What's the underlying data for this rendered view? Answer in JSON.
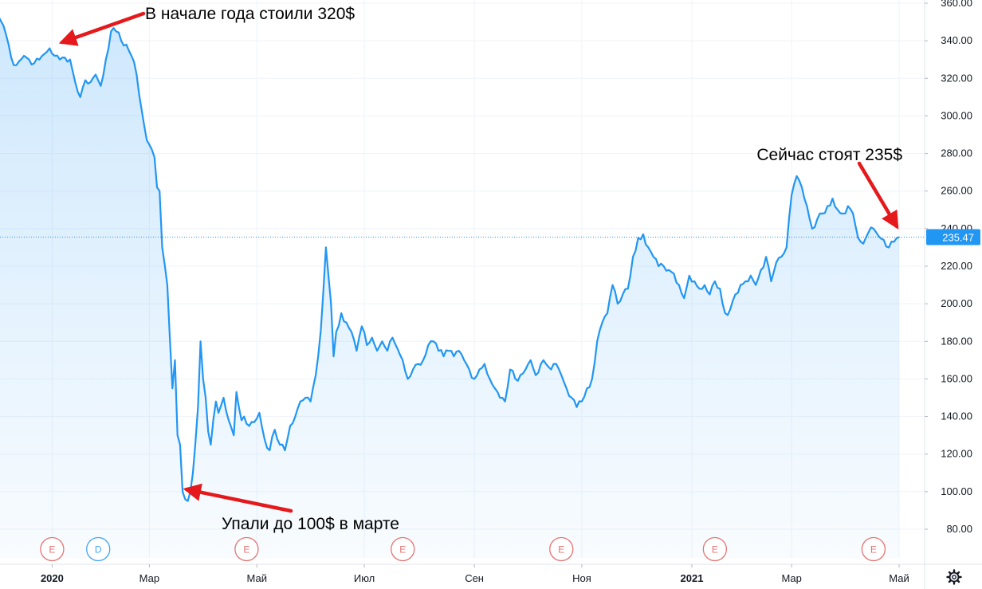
{
  "chart_data": {
    "type": "area",
    "ylim": [
      75,
      362
    ],
    "yticks": [
      "80.00",
      "100.00",
      "120.00",
      "140.00",
      "160.00",
      "180.00",
      "200.00",
      "220.00",
      "240.00",
      "260.00",
      "280.00",
      "300.00",
      "320.00",
      "340.00",
      "360.00"
    ],
    "xticks": [
      {
        "label": "2020",
        "idx": 21,
        "bold": true
      },
      {
        "label": "Мар",
        "idx": 59,
        "bold": false
      },
      {
        "label": "Май",
        "idx": 101,
        "bold": false
      },
      {
        "label": "Июл",
        "idx": 143,
        "bold": false
      },
      {
        "label": "Сен",
        "idx": 186,
        "bold": false
      },
      {
        "label": "Ноя",
        "idx": 228,
        "bold": false
      },
      {
        "label": "2021",
        "idx": 271,
        "bold": true
      },
      {
        "label": "Мар",
        "idx": 310,
        "bold": false
      },
      {
        "label": "Май",
        "idx": 352,
        "bold": false
      }
    ],
    "anchors": [
      [
        0,
        353
      ],
      [
        2,
        348
      ],
      [
        4,
        338
      ],
      [
        6,
        327
      ],
      [
        8,
        329
      ],
      [
        10,
        332
      ],
      [
        12,
        330
      ],
      [
        14,
        328
      ],
      [
        16,
        330
      ],
      [
        18,
        333
      ],
      [
        20,
        336
      ],
      [
        22,
        332
      ],
      [
        24,
        330
      ],
      [
        26,
        331
      ],
      [
        28,
        330
      ],
      [
        30,
        318
      ],
      [
        32,
        310
      ],
      [
        34,
        319
      ],
      [
        36,
        318
      ],
      [
        38,
        322
      ],
      [
        40,
        316
      ],
      [
        42,
        330
      ],
      [
        44,
        345
      ],
      [
        46,
        345
      ],
      [
        48,
        340
      ],
      [
        50,
        338
      ],
      [
        52,
        332
      ],
      [
        54,
        322
      ],
      [
        56,
        303
      ],
      [
        58,
        287
      ],
      [
        60,
        282
      ],
      [
        61,
        278
      ],
      [
        62,
        262
      ],
      [
        63,
        260
      ],
      [
        64,
        230
      ],
      [
        66,
        210
      ],
      [
        68,
        155
      ],
      [
        69,
        170
      ],
      [
        70,
        130
      ],
      [
        71,
        125
      ],
      [
        72,
        100
      ],
      [
        73,
        96
      ],
      [
        74,
        95
      ],
      [
        75,
        100
      ],
      [
        76,
        110
      ],
      [
        78,
        145
      ],
      [
        79,
        180
      ],
      [
        80,
        160
      ],
      [
        81,
        150
      ],
      [
        82,
        132
      ],
      [
        83,
        125
      ],
      [
        85,
        148
      ],
      [
        86,
        142
      ],
      [
        88,
        150
      ],
      [
        90,
        138
      ],
      [
        92,
        130
      ],
      [
        93,
        153
      ],
      [
        95,
        138
      ],
      [
        96,
        140
      ],
      [
        98,
        135
      ],
      [
        100,
        137
      ],
      [
        102,
        142
      ],
      [
        104,
        128
      ],
      [
        106,
        122
      ],
      [
        108,
        133
      ],
      [
        110,
        125
      ],
      [
        112,
        122
      ],
      [
        114,
        135
      ],
      [
        116,
        140
      ],
      [
        118,
        148
      ],
      [
        120,
        150
      ],
      [
        122,
        148
      ],
      [
        124,
        162
      ],
      [
        126,
        186
      ],
      [
        128,
        230
      ],
      [
        130,
        200
      ],
      [
        131,
        172
      ],
      [
        132,
        185
      ],
      [
        134,
        195
      ],
      [
        136,
        190
      ],
      [
        138,
        185
      ],
      [
        140,
        175
      ],
      [
        142,
        188
      ],
      [
        144,
        178
      ],
      [
        146,
        182
      ],
      [
        148,
        175
      ],
      [
        150,
        180
      ],
      [
        152,
        175
      ],
      [
        154,
        182
      ],
      [
        156,
        176
      ],
      [
        158,
        170
      ],
      [
        160,
        160
      ],
      [
        162,
        165
      ],
      [
        164,
        168
      ],
      [
        166,
        170
      ],
      [
        168,
        178
      ],
      [
        170,
        180
      ],
      [
        172,
        175
      ],
      [
        174,
        172
      ],
      [
        176,
        175
      ],
      [
        178,
        172
      ],
      [
        180,
        175
      ],
      [
        182,
        170
      ],
      [
        184,
        165
      ],
      [
        186,
        160
      ],
      [
        188,
        165
      ],
      [
        190,
        168
      ],
      [
        192,
        160
      ],
      [
        194,
        155
      ],
      [
        196,
        150
      ],
      [
        198,
        148
      ],
      [
        200,
        165
      ],
      [
        202,
        160
      ],
      [
        204,
        162
      ],
      [
        206,
        165
      ],
      [
        208,
        170
      ],
      [
        210,
        162
      ],
      [
        212,
        168
      ],
      [
        214,
        168
      ],
      [
        216,
        165
      ],
      [
        218,
        168
      ],
      [
        220,
        162
      ],
      [
        222,
        155
      ],
      [
        224,
        150
      ],
      [
        226,
        145
      ],
      [
        228,
        148
      ],
      [
        230,
        155
      ],
      [
        232,
        160
      ],
      [
        234,
        180
      ],
      [
        236,
        190
      ],
      [
        238,
        195
      ],
      [
        240,
        210
      ],
      [
        242,
        200
      ],
      [
        244,
        205
      ],
      [
        246,
        208
      ],
      [
        248,
        225
      ],
      [
        250,
        235
      ],
      [
        252,
        237
      ],
      [
        254,
        230
      ],
      [
        256,
        225
      ],
      [
        258,
        220
      ],
      [
        260,
        220
      ],
      [
        262,
        218
      ],
      [
        264,
        216
      ],
      [
        266,
        210
      ],
      [
        268,
        203
      ],
      [
        270,
        215
      ],
      [
        272,
        212
      ],
      [
        274,
        208
      ],
      [
        276,
        210
      ],
      [
        278,
        205
      ],
      [
        280,
        212
      ],
      [
        282,
        208
      ],
      [
        284,
        195
      ],
      [
        286,
        197
      ],
      [
        288,
        205
      ],
      [
        290,
        210
      ],
      [
        292,
        212
      ],
      [
        294,
        215
      ],
      [
        296,
        210
      ],
      [
        298,
        218
      ],
      [
        300,
        225
      ],
      [
        302,
        212
      ],
      [
        304,
        222
      ],
      [
        306,
        225
      ],
      [
        308,
        230
      ],
      [
        310,
        258
      ],
      [
        312,
        268
      ],
      [
        314,
        262
      ],
      [
        316,
        252
      ],
      [
        318,
        240
      ],
      [
        320,
        245
      ],
      [
        322,
        248
      ],
      [
        324,
        252
      ],
      [
        326,
        256
      ],
      [
        328,
        250
      ],
      [
        330,
        248
      ],
      [
        332,
        252
      ],
      [
        334,
        248
      ],
      [
        336,
        235
      ],
      [
        338,
        232
      ],
      [
        340,
        238
      ],
      [
        342,
        240
      ],
      [
        344,
        236
      ],
      [
        346,
        234
      ],
      [
        348,
        230
      ],
      [
        350,
        233
      ],
      [
        352,
        235.5
      ]
    ],
    "last_price": "235.47",
    "last_value": 235.47,
    "events": [
      {
        "letter": "E",
        "idx": 21,
        "color": "#e57373"
      },
      {
        "letter": "D",
        "idx": 39,
        "color": "#42a5f5"
      },
      {
        "letter": "E",
        "idx": 97,
        "color": "#e57373"
      },
      {
        "letter": "E",
        "idx": 158,
        "color": "#e57373"
      },
      {
        "letter": "E",
        "idx": 220,
        "color": "#e57373"
      },
      {
        "letter": "E",
        "idx": 280,
        "color": "#e57373"
      },
      {
        "letter": "E",
        "idx": 342,
        "color": "#e57373"
      }
    ],
    "annotations": [
      {
        "text": "В начале года стоили 320$",
        "tx": 182,
        "ty": 24,
        "anchor": "start",
        "ax1": 180,
        "ay1": 17,
        "ax2": 78,
        "ay2": 53
      },
      {
        "text": "Упали до 100$ в марте",
        "tx": 278,
        "ty": 664,
        "anchor": "start",
        "ax1": 365,
        "ay1": 641,
        "ax2": 234,
        "ay2": 614
      },
      {
        "text": "Сейчас стоят 235$",
        "tx": 1132,
        "ty": 201,
        "anchor": "end",
        "ax1": 1078,
        "ay1": 205,
        "ax2": 1125,
        "ay2": 284
      }
    ],
    "line_color": "#2196f3",
    "fill_color": "#2196f3",
    "arrow_color": "#e5191b"
  }
}
